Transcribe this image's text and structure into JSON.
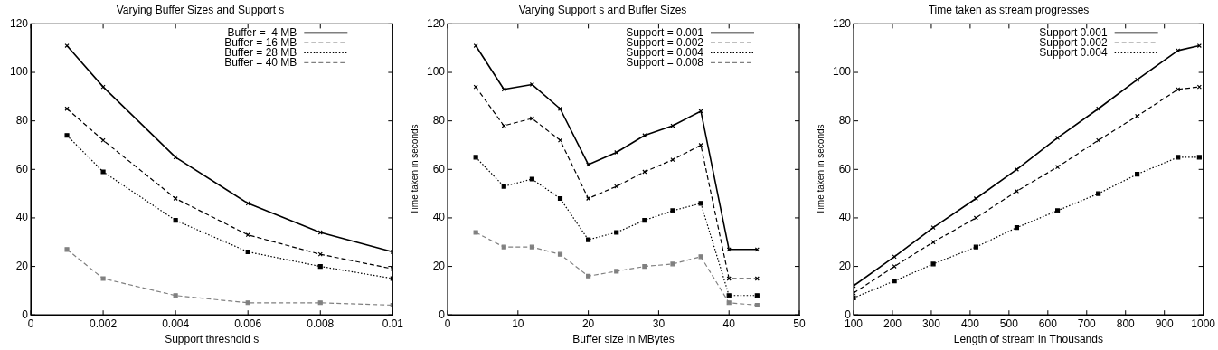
{
  "chart_data": [
    {
      "type": "line",
      "title": "Varying Buffer Sizes and Support s",
      "xlabel": "Support threshold s",
      "x": [
        0.001,
        0.002,
        0.004,
        0.006,
        0.008,
        0.01
      ],
      "series": [
        {
          "name": "Buffer =  4 MB",
          "color": "#000000",
          "marker": "cross",
          "line_style": "solid",
          "values": [
            111,
            94,
            65,
            46,
            34,
            26
          ]
        },
        {
          "name": "Buffer = 16 MB",
          "color": "#000000",
          "marker": "cross",
          "line_style": "dashed",
          "values": [
            85,
            72,
            48,
            33,
            25,
            19
          ]
        },
        {
          "name": "Buffer = 28 MB",
          "color": "#000000",
          "marker": "square",
          "line_style": "dotted",
          "values": [
            74,
            59,
            39,
            26,
            20,
            15
          ]
        },
        {
          "name": "Buffer = 40 MB",
          "color": "#808080",
          "marker": "square",
          "line_style": "dashed",
          "values": [
            27,
            15,
            8,
            5,
            5,
            4
          ]
        }
      ],
      "xlim": [
        0,
        0.01
      ],
      "xticks": [
        0,
        0.002,
        0.004,
        0.006,
        0.008,
        0.01
      ],
      "ylim": [
        0,
        120
      ],
      "yticks": [
        0,
        20,
        40,
        60,
        80,
        100,
        120
      ],
      "grid": false,
      "legend": "top right"
    },
    {
      "type": "line",
      "title": "Varying Support s and Buffer Sizes",
      "xlabel": "Buffer size in MBytes",
      "ylabel": "Time taken in seconds",
      "x": [
        4,
        8,
        12,
        16,
        20,
        24,
        28,
        32,
        36,
        40,
        44
      ],
      "series": [
        {
          "name": "Support = 0.001",
          "color": "#000000",
          "marker": "cross",
          "line_style": "solid",
          "values": [
            111,
            93,
            95,
            85,
            62,
            67,
            74,
            78,
            84,
            27,
            27
          ]
        },
        {
          "name": "Support = 0.002",
          "color": "#000000",
          "marker": "cross",
          "line_style": "dashed",
          "values": [
            94,
            78,
            81,
            72,
            48,
            53,
            59,
            64,
            70,
            15,
            15
          ]
        },
        {
          "name": "Support = 0.004",
          "color": "#000000",
          "marker": "square",
          "line_style": "dotted",
          "values": [
            65,
            53,
            56,
            48,
            31,
            34,
            39,
            43,
            46,
            8,
            8
          ]
        },
        {
          "name": "Support = 0.008",
          "color": "#808080",
          "marker": "square",
          "line_style": "dashed",
          "values": [
            34,
            28,
            28,
            25,
            16,
            18,
            20,
            21,
            24,
            5,
            4
          ]
        }
      ],
      "xlim": [
        0,
        50
      ],
      "xticks": [
        0,
        10,
        20,
        30,
        40,
        50
      ],
      "ylim": [
        0,
        120
      ],
      "yticks": [
        0,
        20,
        40,
        60,
        80,
        100,
        120
      ],
      "grid": false,
      "legend": "top right"
    },
    {
      "type": "line",
      "title": "Time taken as stream progresses",
      "xlabel": "Length of stream in Thousands",
      "ylabel": "Time taken in seconds",
      "x": [
        100,
        205,
        305,
        415,
        520,
        625,
        730,
        830,
        935,
        990
      ],
      "series": [
        {
          "name": "Support 0.001",
          "color": "#000000",
          "marker": "cross",
          "line_style": "solid",
          "values": [
            12,
            24,
            36,
            48,
            60,
            73,
            85,
            97,
            109,
            111
          ]
        },
        {
          "name": "Support 0.002",
          "color": "#000000",
          "marker": "cross",
          "line_style": "dashed",
          "values": [
            9,
            20,
            30,
            40,
            51,
            61,
            72,
            82,
            93,
            94
          ]
        },
        {
          "name": "Support 0.004",
          "color": "#000000",
          "marker": "square",
          "line_style": "dotted",
          "values": [
            7,
            14,
            21,
            28,
            36,
            43,
            50,
            58,
            65,
            65
          ]
        }
      ],
      "xlim": [
        100,
        1000
      ],
      "xticks": [
        100,
        200,
        300,
        400,
        500,
        600,
        700,
        800,
        900,
        1000
      ],
      "ylim": [
        0,
        120
      ],
      "yticks": [
        0,
        20,
        40,
        60,
        80,
        100,
        120
      ],
      "grid": false,
      "legend": "top right"
    }
  ]
}
